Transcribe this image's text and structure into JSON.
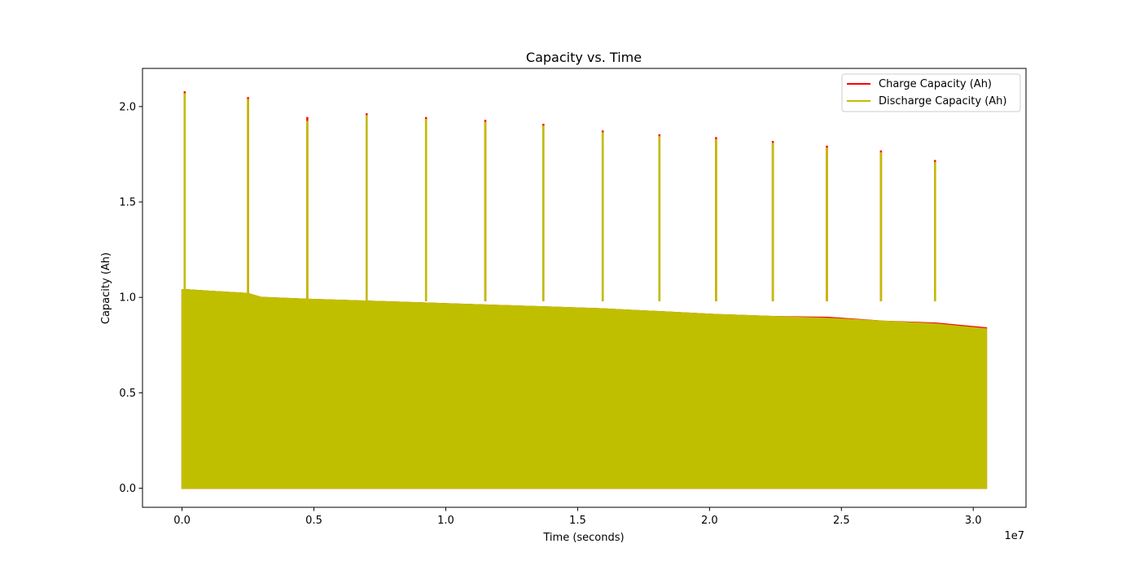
{
  "chart_data": {
    "type": "line",
    "title": "Capacity vs. Time",
    "xlabel": "Time (seconds)",
    "ylabel": "Capacity (Ah)",
    "x_offset_label": "1e7",
    "xlim": [
      -1500000,
      32000000
    ],
    "ylim": [
      -0.1,
      2.2
    ],
    "x_ticks": [
      0,
      5000000,
      10000000,
      15000000,
      20000000,
      25000000,
      30000000
    ],
    "x_tick_labels": [
      "0.0",
      "0.5",
      "1.0",
      "1.5",
      "2.0",
      "2.5",
      "3.0"
    ],
    "y_ticks": [
      0.0,
      0.5,
      1.0,
      1.5,
      2.0
    ],
    "y_tick_labels": [
      "0.0",
      "0.5",
      "1.0",
      "1.5",
      "2.0"
    ],
    "grid": false,
    "legend_position": "top-right",
    "series": [
      {
        "name": "Charge Capacity (Ah)",
        "color": "#ff0000",
        "x": [
          0,
          100000,
          2500000,
          3000000,
          4800000,
          7000000,
          9300000,
          11500000,
          13700000,
          15900000,
          18100000,
          20200000,
          22400000,
          24500000,
          26600000,
          28600000,
          30500000
        ],
        "cycling_upper_envelope": [
          1.04,
          1.04,
          1.02,
          1.0,
          0.99,
          0.98,
          0.97,
          0.96,
          0.95,
          0.94,
          0.925,
          0.91,
          0.9,
          0.895,
          0.875,
          0.865,
          0.84
        ],
        "spikes": [
          {
            "x": 100000,
            "y": 2.08
          },
          {
            "x": 2500000,
            "y": 2.05
          },
          {
            "x": 4750000,
            "y": 1.945
          },
          {
            "x": 7000000,
            "y": 1.965
          },
          {
            "x": 9250000,
            "y": 1.945
          },
          {
            "x": 11500000,
            "y": 1.93
          },
          {
            "x": 13700000,
            "y": 1.91
          },
          {
            "x": 15950000,
            "y": 1.875
          },
          {
            "x": 18100000,
            "y": 1.855
          },
          {
            "x": 20250000,
            "y": 1.84
          },
          {
            "x": 22400000,
            "y": 1.82
          },
          {
            "x": 24450000,
            "y": 1.795
          },
          {
            "x": 26500000,
            "y": 1.77
          },
          {
            "x": 28550000,
            "y": 1.72
          }
        ]
      },
      {
        "name": "Discharge Capacity (Ah)",
        "color": "#bfbf00",
        "x": [
          0,
          100000,
          2500000,
          3000000,
          4800000,
          7000000,
          9300000,
          11500000,
          13700000,
          15900000,
          18100000,
          20200000,
          22400000,
          24500000,
          26600000,
          28600000,
          30500000
        ],
        "cycling_upper_envelope": [
          1.04,
          1.04,
          1.02,
          1.0,
          0.99,
          0.98,
          0.97,
          0.96,
          0.95,
          0.94,
          0.925,
          0.91,
          0.9,
          0.89,
          0.875,
          0.86,
          0.835
        ],
        "spikes": [
          {
            "x": 100000,
            "y": 2.07
          },
          {
            "x": 2500000,
            "y": 2.04
          },
          {
            "x": 4750000,
            "y": 1.925
          },
          {
            "x": 7000000,
            "y": 1.955
          },
          {
            "x": 9250000,
            "y": 1.935
          },
          {
            "x": 11500000,
            "y": 1.92
          },
          {
            "x": 13700000,
            "y": 1.9
          },
          {
            "x": 15950000,
            "y": 1.865
          },
          {
            "x": 18100000,
            "y": 1.845
          },
          {
            "x": 20250000,
            "y": 1.83
          },
          {
            "x": 22400000,
            "y": 1.81
          },
          {
            "x": 24450000,
            "y": 1.785
          },
          {
            "x": 26500000,
            "y": 1.76
          },
          {
            "x": 28550000,
            "y": 1.71
          }
        ]
      }
    ]
  }
}
